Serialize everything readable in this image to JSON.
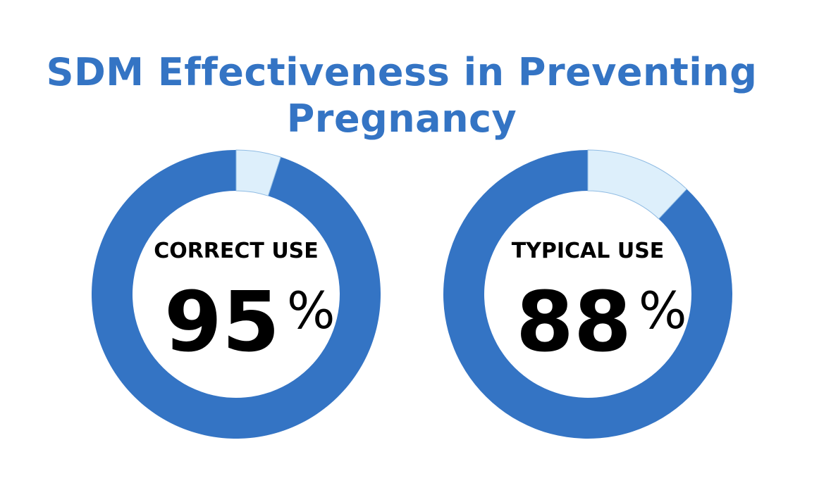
{
  "title_lines": [
    "SDM Effectiveness in Preventing",
    "Pregnancy"
  ],
  "colors": {
    "title": "#3474c4",
    "filled": "#3474c4",
    "remainder": "#ddeffb",
    "remainder_edge": "#8fbbe3",
    "text": "#000000"
  },
  "chart_data": [
    {
      "type": "pie",
      "variant": "donut",
      "label": "CORRECT USE",
      "value": 95,
      "value_text": "95",
      "unit": "%",
      "max": 100
    },
    {
      "type": "pie",
      "variant": "donut",
      "label": "TYPICAL USE",
      "value": 88,
      "value_text": "88",
      "unit": "%",
      "max": 100
    }
  ]
}
